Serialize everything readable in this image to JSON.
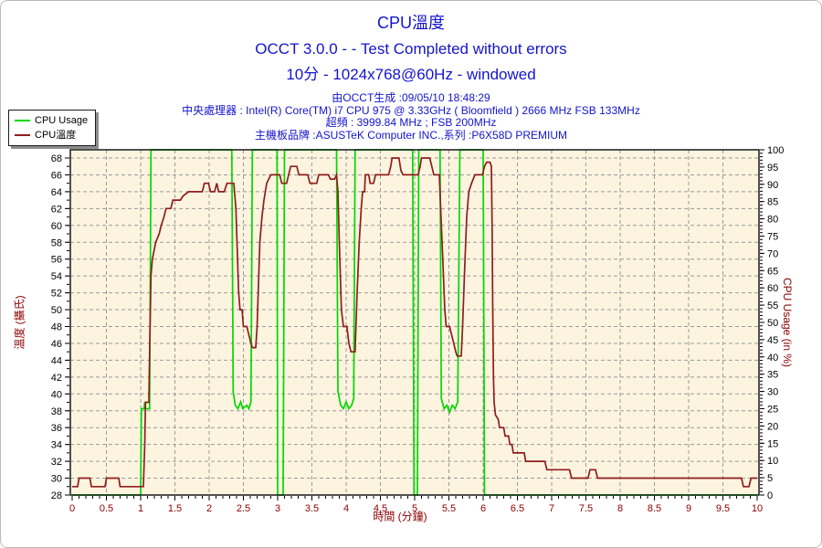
{
  "header": {
    "title": "CPU溫度",
    "subtitle1": "OCCT 3.0.0 -  - Test Completed without errors",
    "subtitle2": "10分 - 1024x768@60Hz - windowed",
    "generated": "由OCCT生成 :09/05/10 18:48:29",
    "cpu_info": "中央處理器 : Intel(R) Core(TM) i7 CPU 975 @ 3.33GHz ( Bloomfield ) 2666 MHz FSB 133MHz",
    "overclock": "超頻 : 3999.84 MHz ; FSB 200MHz",
    "motherboard": "主機板品牌 :ASUSTeK Computer INC.,系列 :P6X58D PREMIUM"
  },
  "legend": {
    "items": [
      {
        "label": "CPU Usage",
        "color": "#00d800"
      },
      {
        "label": "CPU溫度",
        "color": "#8f1d1d"
      }
    ]
  },
  "colors": {
    "title_text": "#1414cd",
    "plot_bg": "#fcf4df",
    "grid": "#9a9a9a",
    "border": "#1a1a1a",
    "axis_title": "#8b0000",
    "x_tick_text": "#8b0000",
    "y_tick_text": "#000000",
    "usage_line": "#00d800",
    "temp_line": "#8f1d1d"
  },
  "chart_data": {
    "type": "line",
    "title": "CPU溫度",
    "grid": true,
    "legend_position": "top-left",
    "x_axis": {
      "label": "時間 (分鐘)",
      "min": 0,
      "max": 10,
      "tick_step": 0.5,
      "minor_tick_step": 0.1,
      "tick_labels": [
        "0",
        "0.5",
        "1",
        "1.5",
        "2",
        "2.5",
        "3",
        "3.5",
        "4",
        "4.5",
        "5",
        "5.5",
        "6",
        "6.5",
        "7",
        "7.5",
        "8",
        "8.5",
        "9",
        "9.5",
        "10"
      ]
    },
    "y_left": {
      "label": "溫度 (攝氏)",
      "min": 28,
      "max": 68,
      "tick_step": 2,
      "minor_tick_step": 1,
      "tick_labels": [
        "28",
        "30",
        "32",
        "34",
        "36",
        "38",
        "40",
        "42",
        "44",
        "46",
        "48",
        "50",
        "52",
        "54",
        "56",
        "58",
        "60",
        "62",
        "64",
        "66",
        "68"
      ]
    },
    "y_right": {
      "label": "CPU Usage (in %)",
      "min": 0,
      "max": 100,
      "tick_step": 5,
      "minor_tick_step": 1,
      "tick_labels": [
        "0",
        "5",
        "10",
        "15",
        "20",
        "25",
        "30",
        "35",
        "40",
        "45",
        "50",
        "55",
        "60",
        "65",
        "70",
        "75",
        "80",
        "85",
        "90",
        "95",
        "100"
      ]
    },
    "series": [
      {
        "name": "CPU Usage",
        "axis": "right",
        "color": "#00d800",
        "points": [
          [
            0,
            0
          ],
          [
            1.0,
            0
          ],
          [
            1.01,
            25
          ],
          [
            1.05,
            25
          ],
          [
            1.06,
            27
          ],
          [
            1.07,
            25
          ],
          [
            1.13,
            25
          ],
          [
            1.15,
            100
          ],
          [
            2.33,
            100
          ],
          [
            2.35,
            30
          ],
          [
            2.38,
            26
          ],
          [
            2.42,
            25
          ],
          [
            2.46,
            27
          ],
          [
            2.49,
            25
          ],
          [
            2.55,
            26
          ],
          [
            2.58,
            25
          ],
          [
            2.61,
            27
          ],
          [
            2.63,
            100
          ],
          [
            2.99,
            100
          ],
          [
            3.0,
            0
          ],
          [
            3.08,
            0
          ],
          [
            3.1,
            100
          ],
          [
            3.86,
            100
          ],
          [
            3.88,
            30
          ],
          [
            3.92,
            26
          ],
          [
            3.96,
            25
          ],
          [
            4.0,
            27
          ],
          [
            4.04,
            25
          ],
          [
            4.08,
            26
          ],
          [
            4.11,
            28
          ],
          [
            4.13,
            100
          ],
          [
            4.97,
            100
          ],
          [
            4.99,
            0
          ],
          [
            5.04,
            0
          ],
          [
            5.06,
            100
          ],
          [
            5.37,
            100
          ],
          [
            5.39,
            28
          ],
          [
            5.43,
            25
          ],
          [
            5.47,
            26
          ],
          [
            5.51,
            24
          ],
          [
            5.55,
            26
          ],
          [
            5.59,
            25
          ],
          [
            5.63,
            27
          ],
          [
            5.66,
            100
          ],
          [
            6.0,
            100
          ],
          [
            6.02,
            0
          ],
          [
            10,
            0
          ]
        ]
      },
      {
        "name": "CPU溫度",
        "axis": "left",
        "color": "#8f1d1d",
        "points": [
          [
            0,
            29
          ],
          [
            0.08,
            29
          ],
          [
            0.1,
            30
          ],
          [
            0.26,
            30
          ],
          [
            0.28,
            29
          ],
          [
            0.48,
            29
          ],
          [
            0.5,
            30
          ],
          [
            0.68,
            30
          ],
          [
            0.7,
            29
          ],
          [
            1.04,
            29
          ],
          [
            1.06,
            34
          ],
          [
            1.07,
            39
          ],
          [
            1.12,
            39
          ],
          [
            1.13,
            45
          ],
          [
            1.15,
            54
          ],
          [
            1.17,
            56
          ],
          [
            1.22,
            58
          ],
          [
            1.27,
            59
          ],
          [
            1.3,
            60
          ],
          [
            1.34,
            61
          ],
          [
            1.37,
            62
          ],
          [
            1.44,
            62
          ],
          [
            1.47,
            63
          ],
          [
            1.58,
            63
          ],
          [
            1.62,
            63.5
          ],
          [
            1.7,
            64
          ],
          [
            1.9,
            64
          ],
          [
            1.93,
            65
          ],
          [
            1.99,
            65
          ],
          [
            2.02,
            64
          ],
          [
            2.08,
            64
          ],
          [
            2.11,
            65
          ],
          [
            2.14,
            64
          ],
          [
            2.22,
            64
          ],
          [
            2.26,
            65
          ],
          [
            2.36,
            65
          ],
          [
            2.39,
            62
          ],
          [
            2.41,
            57
          ],
          [
            2.43,
            52
          ],
          [
            2.45,
            50
          ],
          [
            2.48,
            50
          ],
          [
            2.5,
            48
          ],
          [
            2.55,
            48
          ],
          [
            2.58,
            47
          ],
          [
            2.61,
            46
          ],
          [
            2.63,
            45.5
          ],
          [
            2.68,
            45.5
          ],
          [
            2.7,
            48
          ],
          [
            2.72,
            53
          ],
          [
            2.74,
            58
          ],
          [
            2.77,
            61
          ],
          [
            2.8,
            63
          ],
          [
            2.84,
            65
          ],
          [
            2.9,
            66
          ],
          [
            3.03,
            66
          ],
          [
            3.06,
            65
          ],
          [
            3.13,
            65
          ],
          [
            3.16,
            66
          ],
          [
            3.19,
            67
          ],
          [
            3.28,
            67
          ],
          [
            3.31,
            66
          ],
          [
            3.44,
            66
          ],
          [
            3.47,
            65
          ],
          [
            3.57,
            65
          ],
          [
            3.6,
            66
          ],
          [
            3.74,
            66
          ],
          [
            3.77,
            65.5
          ],
          [
            3.83,
            65.5
          ],
          [
            3.86,
            66
          ],
          [
            3.88,
            64
          ],
          [
            3.9,
            58
          ],
          [
            3.93,
            50
          ],
          [
            3.96,
            48
          ],
          [
            4.01,
            48
          ],
          [
            4.04,
            46
          ],
          [
            4.07,
            45
          ],
          [
            4.13,
            45
          ],
          [
            4.16,
            52
          ],
          [
            4.19,
            58
          ],
          [
            4.22,
            62
          ],
          [
            4.24,
            64
          ],
          [
            4.27,
            64
          ],
          [
            4.28,
            66
          ],
          [
            4.33,
            66
          ],
          [
            4.35,
            65
          ],
          [
            4.4,
            65
          ],
          [
            4.43,
            66
          ],
          [
            4.62,
            66
          ],
          [
            4.65,
            67
          ],
          [
            4.67,
            68
          ],
          [
            4.77,
            68
          ],
          [
            4.8,
            66.5
          ],
          [
            4.83,
            66
          ],
          [
            5.05,
            66
          ],
          [
            5.08,
            67
          ],
          [
            5.1,
            68
          ],
          [
            5.22,
            68
          ],
          [
            5.25,
            67
          ],
          [
            5.28,
            66
          ],
          [
            5.36,
            66
          ],
          [
            5.38,
            62
          ],
          [
            5.41,
            56
          ],
          [
            5.44,
            50
          ],
          [
            5.46,
            48
          ],
          [
            5.51,
            48
          ],
          [
            5.54,
            47
          ],
          [
            5.57,
            46
          ],
          [
            5.6,
            45
          ],
          [
            5.62,
            44.5
          ],
          [
            5.68,
            44.5
          ],
          [
            5.7,
            48
          ],
          [
            5.73,
            55
          ],
          [
            5.76,
            61
          ],
          [
            5.79,
            64
          ],
          [
            5.83,
            65
          ],
          [
            5.88,
            66
          ],
          [
            5.99,
            66
          ],
          [
            6.02,
            67
          ],
          [
            6.05,
            67.5
          ],
          [
            6.1,
            67.5
          ],
          [
            6.12,
            67
          ],
          [
            6.13,
            60
          ],
          [
            6.14,
            50
          ],
          [
            6.15,
            42
          ],
          [
            6.16,
            39
          ],
          [
            6.18,
            37.5
          ],
          [
            6.22,
            37
          ],
          [
            6.24,
            36
          ],
          [
            6.3,
            36
          ],
          [
            6.32,
            35
          ],
          [
            6.37,
            35
          ],
          [
            6.39,
            34
          ],
          [
            6.42,
            34
          ],
          [
            6.44,
            33
          ],
          [
            6.6,
            33
          ],
          [
            6.62,
            32
          ],
          [
            6.9,
            32
          ],
          [
            6.93,
            31
          ],
          [
            7.26,
            31
          ],
          [
            7.29,
            30
          ],
          [
            7.53,
            30
          ],
          [
            7.56,
            31
          ],
          [
            7.64,
            31
          ],
          [
            7.67,
            30
          ],
          [
            9.77,
            30
          ],
          [
            9.8,
            29
          ],
          [
            9.88,
            29
          ],
          [
            9.91,
            30
          ],
          [
            10,
            30
          ]
        ]
      }
    ]
  }
}
